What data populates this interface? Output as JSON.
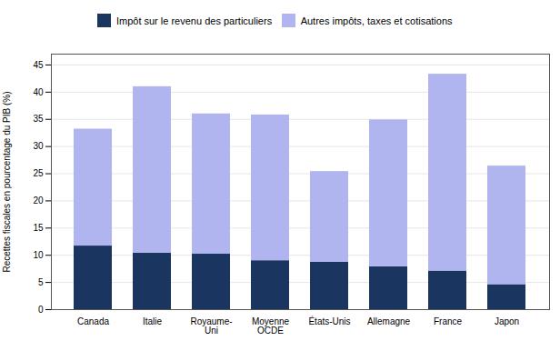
{
  "chart_data": {
    "type": "bar",
    "stacked": true,
    "categories": [
      "Canada",
      "Italie",
      "Royaume-\nUni",
      "Moyenne\nOCDE",
      "États-Unis",
      "Allemagne",
      "France",
      "Japon"
    ],
    "series": [
      {
        "name": "Impôt sur le revenu des particuliers",
        "color": "#1a3560",
        "values": [
          11.7,
          10.4,
          10.2,
          9.0,
          8.7,
          7.9,
          7.1,
          4.6
        ]
      },
      {
        "name": "Autres impôts, taxes et cotisations",
        "color": "#b0b4ef",
        "values": [
          21.5,
          30.6,
          25.8,
          26.8,
          16.7,
          27.0,
          36.2,
          21.8
        ]
      }
    ],
    "ylabel": "Recettes fiscales en pourcentage du PIB (%)",
    "ylim": [
      0,
      47
    ],
    "yticks": [
      0,
      5,
      10,
      15,
      20,
      25,
      30,
      35,
      40,
      45
    ],
    "grid": true,
    "legend": "top"
  }
}
